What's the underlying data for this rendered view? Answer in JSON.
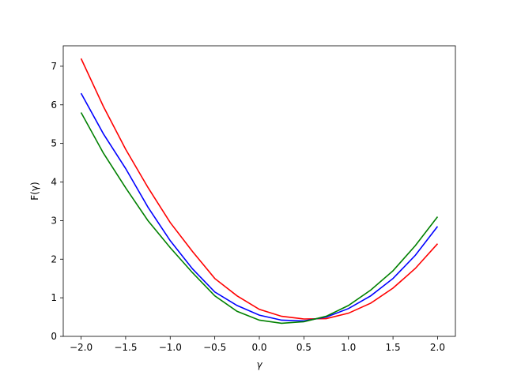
{
  "chart_data": {
    "type": "line",
    "x_label": "γ",
    "y_label": "F(γ)",
    "x": [
      -2,
      -1.75,
      -1.5,
      -1.25,
      -1,
      -0.75,
      -0.5,
      -0.25,
      0,
      0.25,
      0.5,
      0.75,
      1,
      1.25,
      1.5,
      1.75,
      2
    ],
    "series": [
      {
        "color": "#ff0000",
        "values": [
          7.2,
          5.96,
          4.85,
          3.86,
          2.95,
          2.2,
          1.5,
          1.05,
          0.7,
          0.52,
          0.45,
          0.46,
          0.6,
          0.86,
          1.25,
          1.76,
          2.4
        ]
      },
      {
        "color": "#0000ff",
        "values": [
          6.3,
          5.25,
          4.35,
          3.35,
          2.48,
          1.75,
          1.15,
          0.8,
          0.55,
          0.42,
          0.4,
          0.5,
          0.72,
          1.05,
          1.5,
          2.1,
          2.85
        ]
      },
      {
        "color": "#008000",
        "values": [
          5.8,
          4.75,
          3.85,
          3.0,
          2.3,
          1.65,
          1.05,
          0.65,
          0.42,
          0.34,
          0.38,
          0.52,
          0.8,
          1.2,
          1.7,
          2.35,
          3.1
        ]
      }
    ],
    "xlim": [
      -2.2,
      2.2
    ],
    "ylim": [
      0,
      7.53
    ],
    "xticks": [
      {
        "value": -2,
        "label": "−2.0"
      },
      {
        "value": -1.5,
        "label": "−1.5"
      },
      {
        "value": -1,
        "label": "−1.0"
      },
      {
        "value": -0.5,
        "label": "−0.5"
      },
      {
        "value": 0,
        "label": "0.0"
      },
      {
        "value": 0.5,
        "label": "0.5"
      },
      {
        "value": 1,
        "label": "1.0"
      },
      {
        "value": 1.5,
        "label": "1.5"
      },
      {
        "value": 2,
        "label": "2.0"
      }
    ],
    "yticks": [
      0,
      1,
      2,
      3,
      4,
      5,
      6,
      7
    ],
    "grid": false
  }
}
